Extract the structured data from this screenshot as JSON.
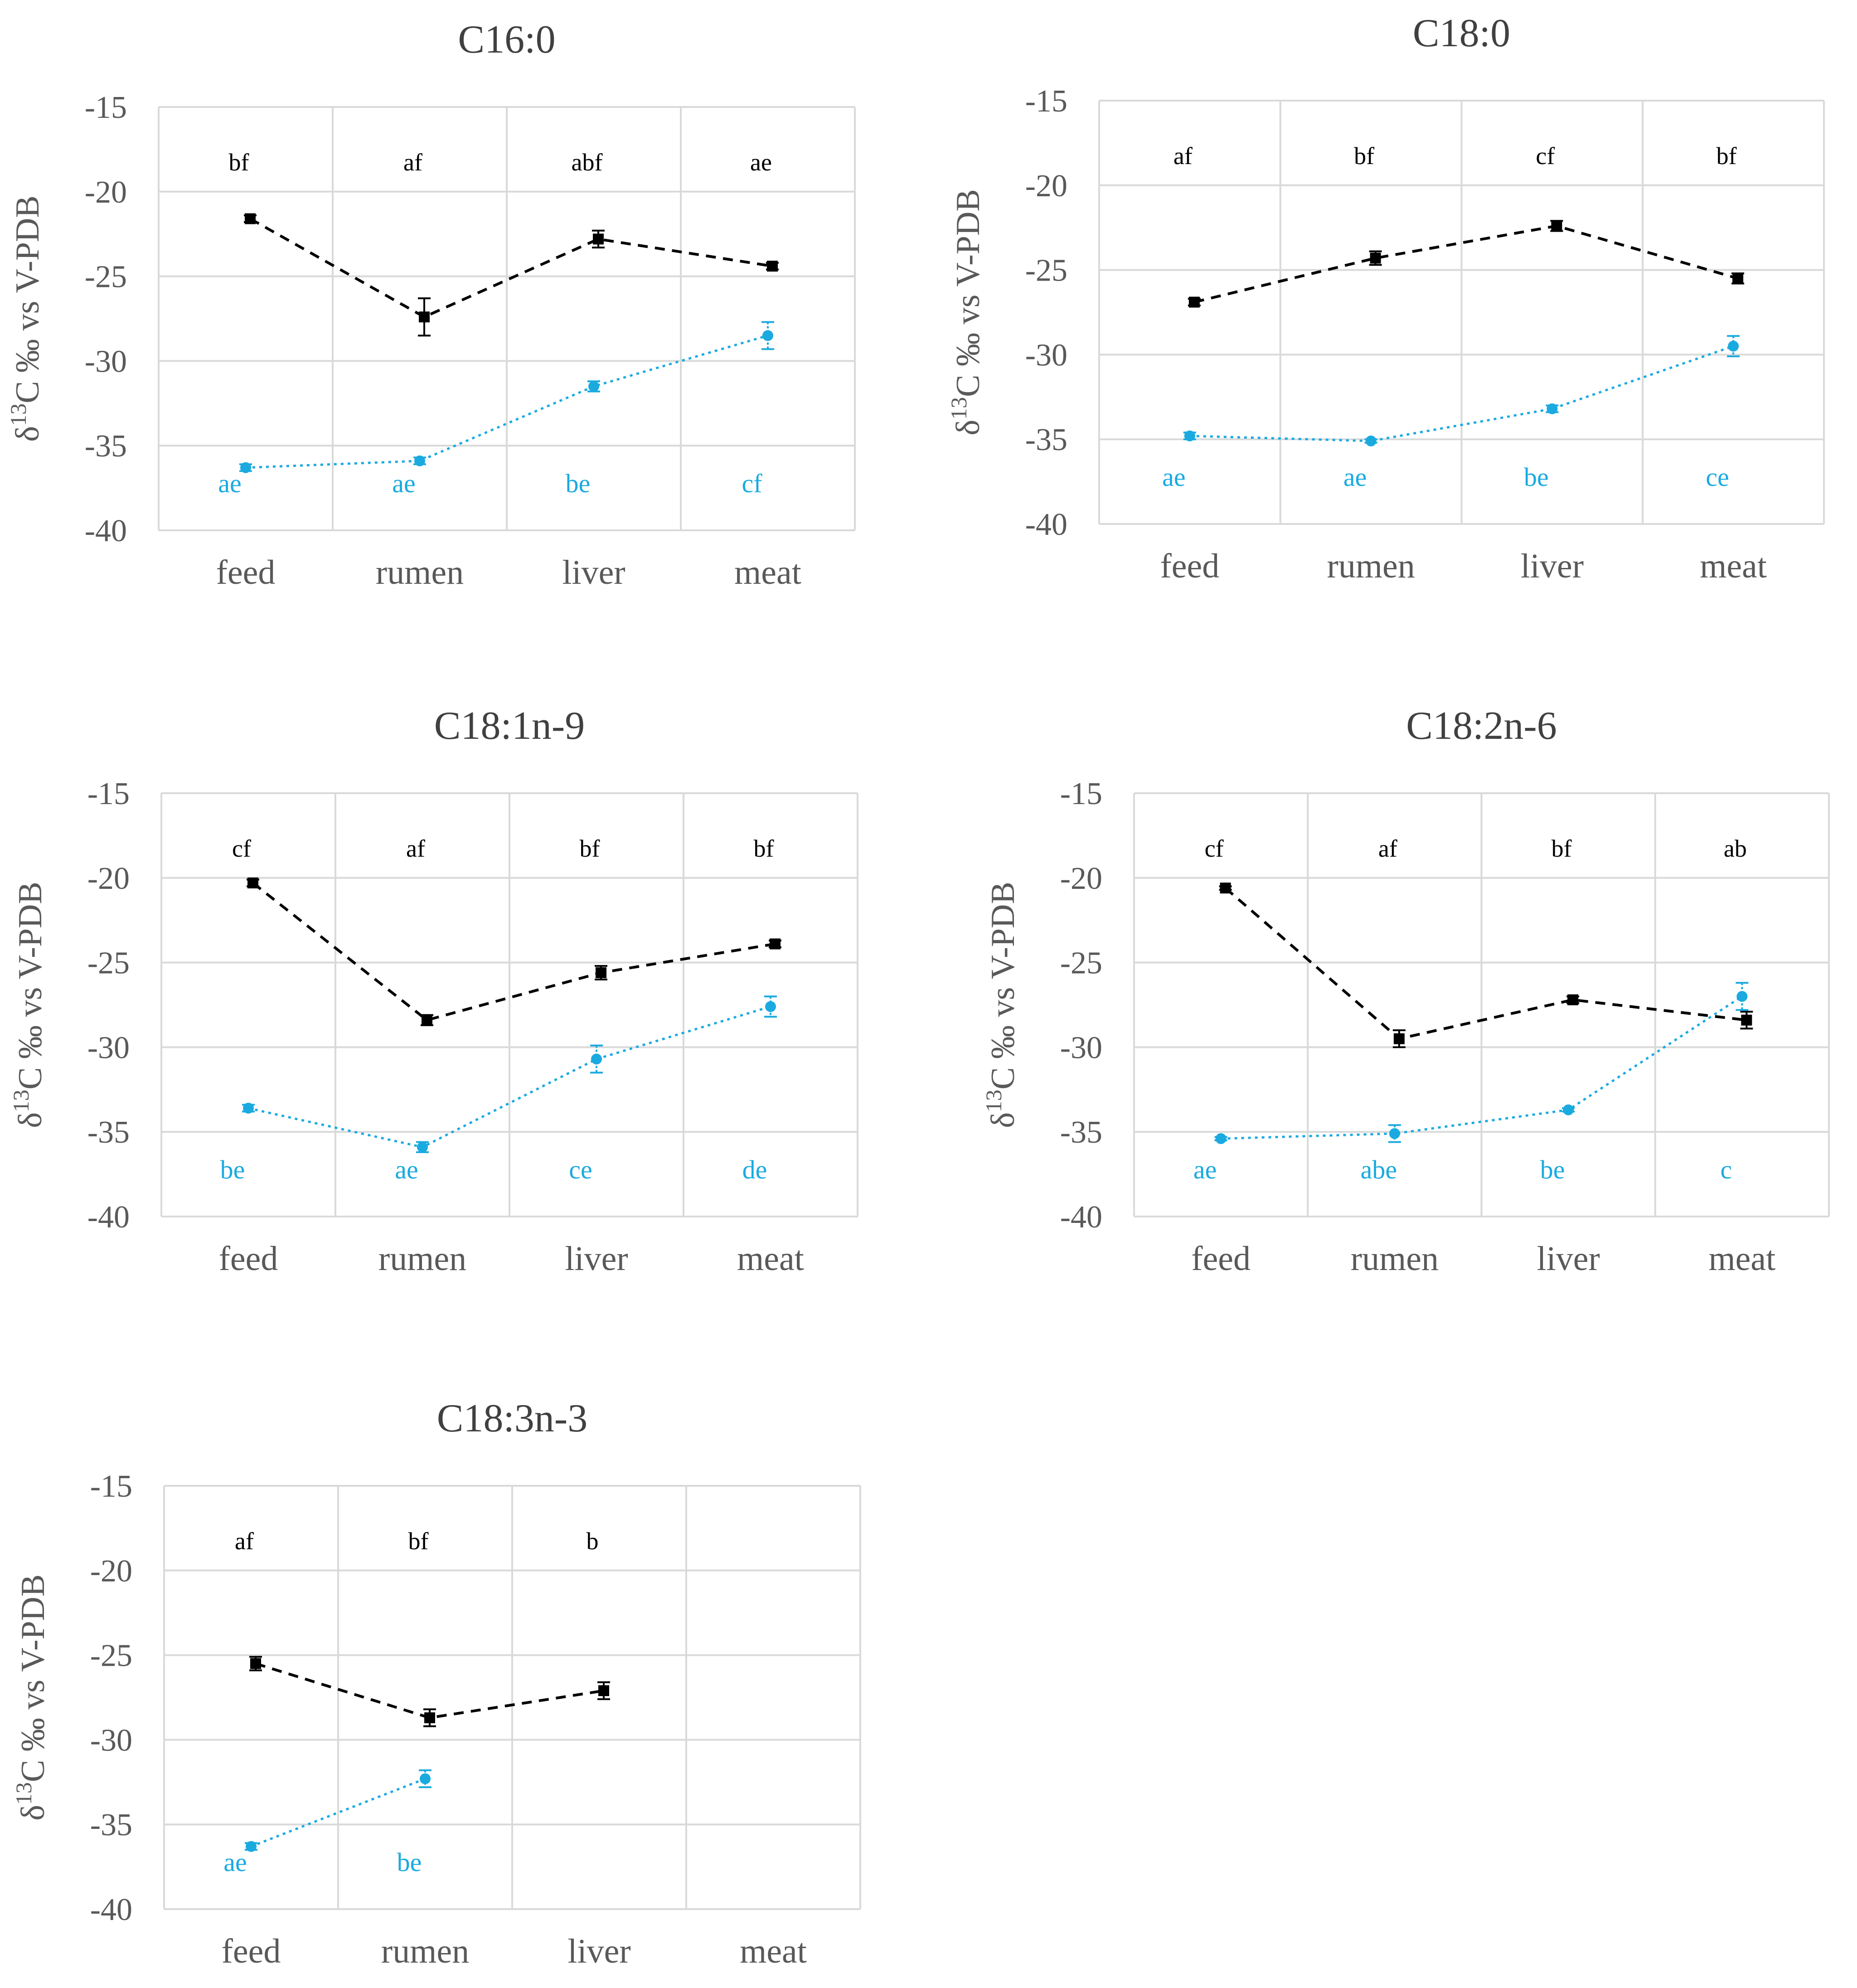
{
  "figure": {
    "colors": {
      "black_series": "#000000",
      "blue_series": "#1aaae0",
      "grid": "#d9d9d9",
      "axis_text": "#595959"
    }
  },
  "chart_data": [
    {
      "type": "line",
      "title": "C16:0",
      "ylabel": "δ13C ‰ vs V-PDB",
      "ylabel_parts": {
        "main": "δ",
        "sup": "13",
        "rest": "C ‰ vs V-PDB"
      },
      "categories": [
        "feed",
        "rumen",
        "liver",
        "meat"
      ],
      "ylim": [
        -40,
        -15
      ],
      "yticks": [
        "-15",
        "-20",
        "-25",
        "-30",
        "-35",
        "-40"
      ],
      "series": [
        {
          "name": "black",
          "values": [
            -21.6,
            -27.4,
            -22.8,
            -24.4
          ],
          "errors": [
            0.2,
            1.1,
            0.5,
            0.2
          ],
          "letters": [
            "bf",
            "af",
            "abf",
            "ae"
          ]
        },
        {
          "name": "blue",
          "values": [
            -36.3,
            -35.9,
            -31.5,
            -28.5
          ],
          "errors": [
            0.2,
            0.2,
            0.3,
            0.8
          ],
          "letters": [
            "ae",
            "ae",
            "be",
            "cf"
          ]
        }
      ]
    },
    {
      "type": "line",
      "title": "C18:0",
      "ylabel": "δ13C ‰ vs V-PDB",
      "ylabel_parts": {
        "main": "δ",
        "sup": "13",
        "rest": "C ‰ vs V-PDB"
      },
      "categories": [
        "feed",
        "rumen",
        "liver",
        "meat"
      ],
      "ylim": [
        -40,
        -15
      ],
      "yticks": [
        "-15",
        "-20",
        "-25",
        "-30",
        "-35",
        "-40"
      ],
      "series": [
        {
          "name": "black",
          "values": [
            -26.9,
            -24.3,
            -22.4,
            -25.5
          ],
          "errors": [
            0.2,
            0.4,
            0.3,
            0.3
          ],
          "letters": [
            "af",
            "bf",
            "cf",
            "bf"
          ]
        },
        {
          "name": "blue",
          "values": [
            -34.8,
            -35.1,
            -33.2,
            -29.5
          ],
          "errors": [
            0.2,
            0.1,
            0.2,
            0.6
          ],
          "letters": [
            "ae",
            "ae",
            "be",
            "ce"
          ]
        }
      ]
    },
    {
      "type": "line",
      "title": "C18:1n-9",
      "ylabel": "δ13C ‰ vs V-PDB",
      "ylabel_parts": {
        "main": "δ",
        "sup": "13",
        "rest": "C ‰ vs V-PDB"
      },
      "categories": [
        "feed",
        "rumen",
        "liver",
        "meat"
      ],
      "ylim": [
        -40,
        -15
      ],
      "yticks": [
        "-15",
        "-20",
        "-25",
        "-30",
        "-35",
        "-40"
      ],
      "series": [
        {
          "name": "black",
          "values": [
            -20.3,
            -28.4,
            -25.6,
            -23.9
          ],
          "errors": [
            0.2,
            0.3,
            0.4,
            0.2
          ],
          "letters": [
            "cf",
            "af",
            "bf",
            "bf"
          ]
        },
        {
          "name": "blue",
          "values": [
            -33.6,
            -35.9,
            -30.7,
            -27.6
          ],
          "errors": [
            0.2,
            0.3,
            0.8,
            0.6
          ],
          "letters": [
            "be",
            "ae",
            "ce",
            "de"
          ]
        }
      ]
    },
    {
      "type": "line",
      "title": "C18:2n-6",
      "ylabel": "δ13C ‰ vs V-PDB",
      "ylabel_parts": {
        "main": "δ",
        "sup": "13",
        "rest": "C ‰ vs V-PDB"
      },
      "categories": [
        "feed",
        "rumen",
        "liver",
        "meat"
      ],
      "ylim": [
        -40,
        -15
      ],
      "yticks": [
        "-15",
        "-20",
        "-25",
        "-30",
        "-35",
        "-40"
      ],
      "series": [
        {
          "name": "black",
          "values": [
            -20.6,
            -29.5,
            -27.2,
            -28.4
          ],
          "errors": [
            0.1,
            0.5,
            0.2,
            0.5
          ],
          "letters": [
            "cf",
            "af",
            "bf",
            "ab"
          ]
        },
        {
          "name": "blue",
          "values": [
            -35.4,
            -35.1,
            -33.7,
            -27.0
          ],
          "errors": [
            0.1,
            0.5,
            0.1,
            0.8
          ],
          "letters": [
            "ae",
            "abe",
            "be",
            "c"
          ]
        }
      ]
    },
    {
      "type": "line",
      "title": "C18:3n-3",
      "ylabel": "δ13C ‰ vs V-PDB",
      "ylabel_parts": {
        "main": "δ",
        "sup": "13",
        "rest": "C ‰ vs V-PDB"
      },
      "categories": [
        "feed",
        "rumen",
        "liver",
        "meat"
      ],
      "ylim": [
        -40,
        -15
      ],
      "yticks": [
        "-15",
        "-20",
        "-25",
        "-30",
        "-35",
        "-40"
      ],
      "series": [
        {
          "name": "black",
          "values": [
            -25.5,
            -28.7,
            -27.1,
            null
          ],
          "errors": [
            0.4,
            0.5,
            0.5,
            null
          ],
          "letters": [
            "af",
            "bf",
            "b",
            ""
          ]
        },
        {
          "name": "blue",
          "values": [
            -36.3,
            -32.3,
            null,
            null
          ],
          "errors": [
            0.2,
            0.5,
            null,
            null
          ],
          "letters": [
            "ae",
            "be",
            "",
            ""
          ]
        }
      ]
    }
  ]
}
